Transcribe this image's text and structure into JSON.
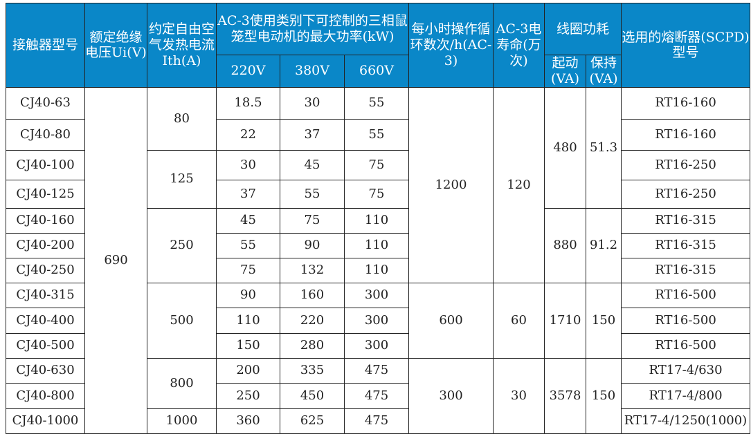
{
  "header": {
    "model": "接触器型号",
    "ui": "额定绝缘电压Ui(V)",
    "ith": "约定自由空气发热电流Ith(A)",
    "power": "AC-3使用类别下可控制的三相鼠笼型电动机的最大功率(kW)",
    "v220": "220V",
    "v380": "380V",
    "v660": "660V",
    "cycles": "每小时操作循环数次/h(AC-3)",
    "life": "AC-3电寿命(万次)",
    "coil": "线圈功耗",
    "start": "起动(VA)",
    "hold": "保持(VA)",
    "fuse": "选用的熔断器(SCPD)型号"
  },
  "ui_value": "690",
  "ith_groups": [
    "80",
    "125",
    "250",
    "500",
    "800",
    "1000"
  ],
  "cycle_groups": [
    "1200",
    "600",
    "300"
  ],
  "life_groups": [
    "120",
    "60",
    "30"
  ],
  "start_groups": [
    "480",
    "880",
    "1710",
    "3578"
  ],
  "hold_groups": [
    "51.3",
    "91.2",
    "150",
    "150"
  ],
  "rows": [
    {
      "model": "CJ40-63",
      "p220": "18.5",
      "p380": "30",
      "p660": "55",
      "fuse": "RT16-160"
    },
    {
      "model": "CJ40-80",
      "p220": "22",
      "p380": "37",
      "p660": "55",
      "fuse": "RT16-160"
    },
    {
      "model": "CJ40-100",
      "p220": "30",
      "p380": "45",
      "p660": "75",
      "fuse": "RT16-250"
    },
    {
      "model": "CJ40-125",
      "p220": "37",
      "p380": "55",
      "p660": "75",
      "fuse": "RT16-250"
    },
    {
      "model": "CJ40-160",
      "p220": "45",
      "p380": "75",
      "p660": "110",
      "fuse": "RT16-315"
    },
    {
      "model": "CJ40-200",
      "p220": "55",
      "p380": "90",
      "p660": "110",
      "fuse": "RT16-315"
    },
    {
      "model": "CJ40-250",
      "p220": "75",
      "p380": "132",
      "p660": "110",
      "fuse": "RT16-315"
    },
    {
      "model": "CJ40-315",
      "p220": "90",
      "p380": "160",
      "p660": "300",
      "fuse": "RT16-500"
    },
    {
      "model": "CJ40-400",
      "p220": "110",
      "p380": "220",
      "p660": "300",
      "fuse": "RT16-500"
    },
    {
      "model": "CJ40-500",
      "p220": "150",
      "p380": "280",
      "p660": "300",
      "fuse": "RT16-500"
    },
    {
      "model": "CJ40-630",
      "p220": "200",
      "p380": "335",
      "p660": "475",
      "fuse": "RT17-4/630"
    },
    {
      "model": "CJ40-800",
      "p220": "250",
      "p380": "450",
      "p660": "475",
      "fuse": "RT17-4/800"
    },
    {
      "model": "CJ40-1000",
      "p220": "360",
      "p380": "625",
      "p660": "475",
      "fuse": "RT17-4/1250(1000)"
    }
  ]
}
